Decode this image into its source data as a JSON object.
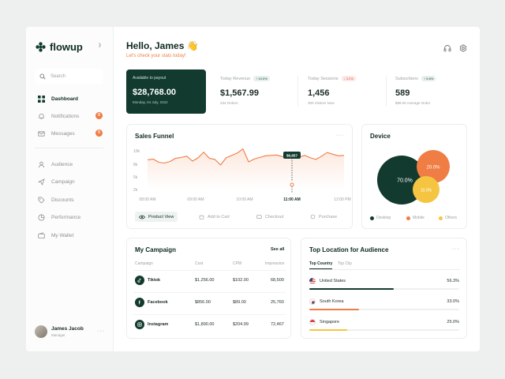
{
  "brand": {
    "name": "flowup",
    "collapse_icon": "collapse-icon"
  },
  "search": {
    "placeholder": "Search"
  },
  "nav": {
    "items": [
      {
        "label": "Dashboard",
        "icon": "grid-icon",
        "active": true,
        "badge": ""
      },
      {
        "label": "Notifications",
        "icon": "bell-icon",
        "active": false,
        "badge": "8"
      },
      {
        "label": "Messages",
        "icon": "mail-icon",
        "active": false,
        "badge": "5"
      },
      {
        "label": "Audience",
        "icon": "user-icon",
        "active": false,
        "badge": ""
      },
      {
        "label": "Campaign",
        "icon": "send-icon",
        "active": false,
        "badge": ""
      },
      {
        "label": "Discounts",
        "icon": "tag-icon",
        "active": false,
        "badge": ""
      },
      {
        "label": "Performance",
        "icon": "chart-icon",
        "active": false,
        "badge": ""
      },
      {
        "label": "My Wallet",
        "icon": "wallet-icon",
        "active": false,
        "badge": ""
      }
    ]
  },
  "user": {
    "name": "James Jacob",
    "role": "Manager"
  },
  "header": {
    "greeting": "Hello, James 👋",
    "subtitle": "Let's check your stats today!"
  },
  "payout": {
    "label": "Available to payout",
    "amount": "$28,768.00",
    "date": "Monday, 04 July, 2022"
  },
  "stats": [
    {
      "label": "Today Revenue",
      "badge": "↑ 10.0%",
      "trend": "up",
      "value": "$1,567.99",
      "sub": "234 Orders"
    },
    {
      "label": "Today Sessions",
      "badge": "↓ 3.2%",
      "trend": "down",
      "value": "1,456",
      "sub": "300 Visitors Now"
    },
    {
      "label": "Subscribers",
      "badge": "↑ 9.8%",
      "trend": "up",
      "value": "589",
      "sub": "$89.00 Average Order"
    }
  ],
  "sales_funnel": {
    "title": "Sales Funnel",
    "tooltip": "$6,657",
    "tabs": [
      {
        "label": "Product View",
        "icon": "eye-icon",
        "active": true
      },
      {
        "label": "Add to Cart",
        "icon": "cart-icon",
        "active": false
      },
      {
        "label": "Checkout",
        "icon": "card-icon",
        "active": false
      },
      {
        "label": "Purchase",
        "icon": "bag-icon",
        "active": false
      }
    ]
  },
  "chart_data": [
    {
      "type": "area",
      "title": "Sales Funnel",
      "yticks": [
        "10k",
        "8k",
        "5k",
        "2k"
      ],
      "xticks": [
        "08:00 AM",
        "09:00 AM",
        "10:00 AM",
        "11:00 AM",
        "12:00 PM"
      ],
      "ylim": [
        0,
        10000
      ],
      "highlight": {
        "x": "11:00 AM",
        "label": "$6,657"
      },
      "series": [
        {
          "color": "#ef7d44",
          "values": [
            5800,
            6000,
            5200,
            5000,
            5400,
            6200,
            6400,
            6700,
            5500,
            6300,
            7700,
            6200,
            5900,
            4500,
            6300,
            6900,
            7500,
            8500,
            5300,
            6000,
            6400,
            6800,
            6900,
            7000,
            6600,
            6700,
            6200,
            6500,
            6900,
            6300,
            5900,
            6700,
            7600,
            7200,
            6800,
            6900
          ]
        }
      ]
    },
    {
      "type": "bubble",
      "title": "Device",
      "series": [
        {
          "name": "Desktop",
          "value": 70.0,
          "label": "70.0%",
          "color": "#123a2e"
        },
        {
          "name": "Mobile",
          "value": 20.0,
          "label": "20.0%",
          "color": "#ef7d44"
        },
        {
          "name": "Others",
          "value": 10.0,
          "label": "10.0%",
          "color": "#f5c542"
        }
      ]
    }
  ],
  "campaign": {
    "title": "My Campaign",
    "see_all": "See all",
    "columns": [
      "Campaign",
      "Cost",
      "CPM",
      "Impression"
    ],
    "rows": [
      {
        "name": "Tiktok",
        "icon": "tiktok-icon",
        "cost": "$1,256.00",
        "cpm": "$102.00",
        "impression": "68,500"
      },
      {
        "name": "Facebook",
        "icon": "facebook-icon",
        "cost": "$856.00",
        "cpm": "$89.00",
        "impression": "25,760"
      },
      {
        "name": "Instagram",
        "icon": "instagram-icon",
        "cost": "$1,890.00",
        "cpm": "$204.99",
        "impression": "72,467"
      }
    ]
  },
  "location": {
    "title": "Top Location for Audience",
    "tabs": [
      "Top Country",
      "Top City"
    ],
    "rows": [
      {
        "name": "United States",
        "pct": "56.3%",
        "value": 56.3,
        "color": "#123a2e",
        "flag": "us-flag-icon"
      },
      {
        "name": "South Korea",
        "pct": "33.0%",
        "value": 33.0,
        "color": "#ef7d44",
        "flag": "kr-flag-icon"
      },
      {
        "name": "Singapore",
        "pct": "25.0%",
        "value": 25.0,
        "color": "#f5c542",
        "flag": "sg-flag-icon"
      }
    ]
  }
}
